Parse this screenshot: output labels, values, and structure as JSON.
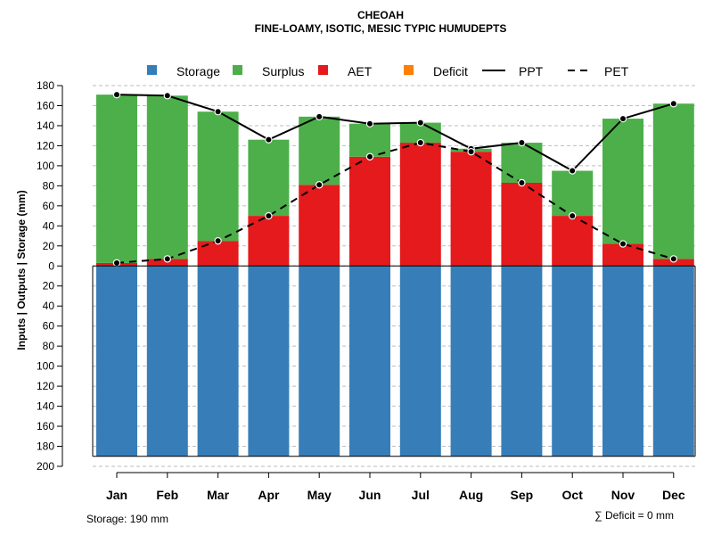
{
  "chart_data": {
    "type": "bar",
    "title": "CHEOAH",
    "subtitle": "FINE-LOAMY, ISOTIC, MESIC TYPIC HUMUDEPTS",
    "ylabel": "Inputs | Outputs | Storage    (mm)",
    "xlabel": "",
    "categories": [
      "Jan",
      "Feb",
      "Mar",
      "Apr",
      "May",
      "Jun",
      "Jul",
      "Aug",
      "Sep",
      "Oct",
      "Nov",
      "Dec"
    ],
    "ylim": [
      -200,
      180
    ],
    "yticks": [
      180,
      160,
      140,
      120,
      100,
      80,
      60,
      40,
      20,
      0,
      -20,
      -40,
      -60,
      -80,
      -100,
      -120,
      -140,
      -160,
      -180,
      -200
    ],
    "ytick_labels": [
      "180",
      "160",
      "140",
      "120",
      "100",
      "80",
      "60",
      "40",
      "20",
      "0",
      "20",
      "40",
      "60",
      "80",
      "100",
      "120",
      "140",
      "160",
      "180",
      "200"
    ],
    "grid": true,
    "legend_position": "top",
    "series": [
      {
        "name": "Storage",
        "kind": "bar",
        "color": "#377EB8",
        "values": [
          -190,
          -190,
          -190,
          -190,
          -190,
          -190,
          -190,
          -190,
          -190,
          -190,
          -190,
          -190
        ]
      },
      {
        "name": "Surplus",
        "kind": "bar",
        "color": "#4DAF4A",
        "values": [
          168,
          163,
          129,
          76,
          68,
          33,
          20,
          3,
          40,
          45,
          125,
          155
        ]
      },
      {
        "name": "AET",
        "kind": "bar",
        "color": "#E41A1C",
        "values": [
          3,
          7,
          25,
          50,
          81,
          109,
          123,
          114,
          83,
          50,
          22,
          7
        ]
      },
      {
        "name": "Deficit",
        "kind": "bar",
        "color": "#FF7F00",
        "values": [
          0,
          0,
          0,
          0,
          0,
          0,
          0,
          0,
          0,
          0,
          0,
          0
        ]
      },
      {
        "name": "PPT",
        "kind": "line",
        "style": "solid",
        "values": [
          171,
          170,
          154,
          126,
          149,
          142,
          143,
          117,
          123,
          95,
          147,
          162
        ]
      },
      {
        "name": "PET",
        "kind": "line",
        "style": "dashed",
        "values": [
          3,
          7,
          25,
          50,
          81,
          109,
          123,
          114,
          83,
          50,
          22,
          7
        ]
      }
    ],
    "annotations": {
      "storage": "Storage: 190 mm",
      "deficit": "∑ Deficit = 0 mm"
    }
  }
}
